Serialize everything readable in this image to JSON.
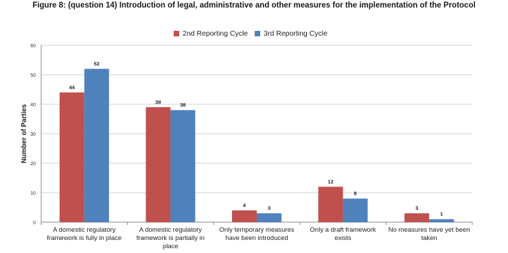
{
  "chart_data": {
    "type": "bar",
    "title": "Figure 8: (question 14) Introduction of legal, administrative and other measures for the implementation of the Protocol",
    "xlabel": "",
    "ylabel": "Number of Parties",
    "ylim": [
      0,
      60
    ],
    "yticks": [
      0,
      10,
      20,
      30,
      40,
      50,
      60
    ],
    "grid": true,
    "legend_position": "top",
    "categories": [
      "A domestic regulatory framework is fully in place",
      "A domestic regulatory framework is partially in place",
      "Only temporary measures have been introduced",
      "Only a draft framework exists",
      "No measures have yet been taken"
    ],
    "category_lines": [
      [
        "A domestic regulatory",
        "framework is fully in place"
      ],
      [
        "A domestic regulatory",
        "framework is partially in",
        "place"
      ],
      [
        "Only temporary measures",
        "have been introduced"
      ],
      [
        "Only a draft framework",
        "exists"
      ],
      [
        "No measures have yet been",
        "taken"
      ]
    ],
    "series": [
      {
        "name": "2nd Reporting Cycle",
        "color": "#c0504d",
        "values": [
          44,
          39,
          4,
          12,
          3
        ]
      },
      {
        "name": "3rd Reporting Cycle",
        "color": "#4f81bd",
        "values": [
          52,
          38,
          3,
          8,
          1
        ]
      }
    ]
  }
}
